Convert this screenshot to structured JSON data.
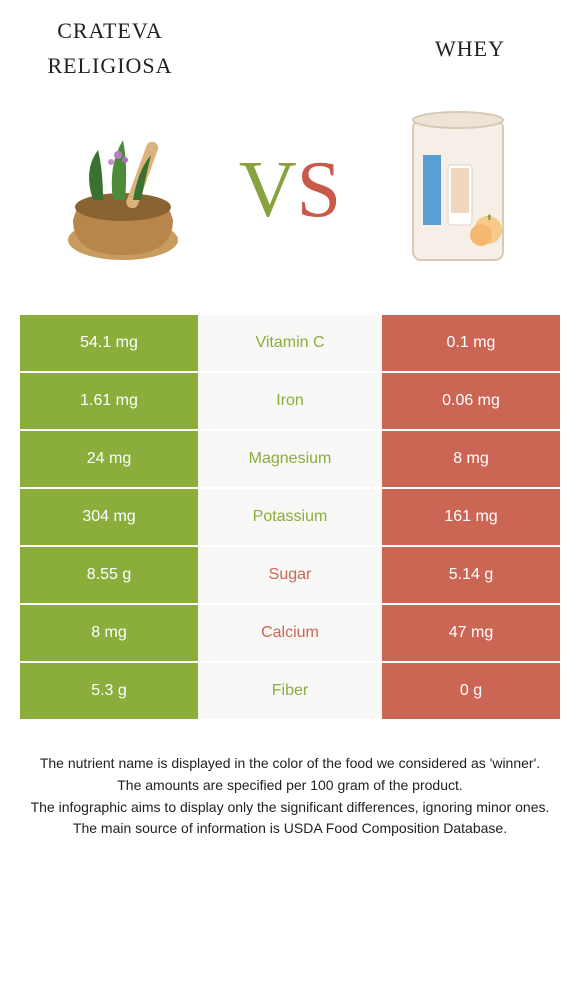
{
  "header": {
    "left_title": "crateva religiosa",
    "right_title": "whey",
    "vs_v": "V",
    "vs_s": "S"
  },
  "colors": {
    "left_bg": "#8aad3c",
    "right_bg": "#cb6654",
    "mid_bg": "#f8f8f6",
    "left_text": "#ffffff",
    "right_text": "#ffffff",
    "nutrient_left_win": "#8aad3c",
    "nutrient_right_win": "#cb6654"
  },
  "rows": [
    {
      "nutrient": "Vitamin C",
      "left": "54.1 mg",
      "right": "0.1 mg",
      "winner": "left"
    },
    {
      "nutrient": "Iron",
      "left": "1.61 mg",
      "right": "0.06 mg",
      "winner": "left"
    },
    {
      "nutrient": "Magnesium",
      "left": "24 mg",
      "right": "8 mg",
      "winner": "left"
    },
    {
      "nutrient": "Potassium",
      "left": "304 mg",
      "right": "161 mg",
      "winner": "left"
    },
    {
      "nutrient": "Sugar",
      "left": "8.55 g",
      "right": "5.14 g",
      "winner": "right"
    },
    {
      "nutrient": "Calcium",
      "left": "8 mg",
      "right": "47 mg",
      "winner": "right"
    },
    {
      "nutrient": "Fiber",
      "left": "5.3 g",
      "right": "0 g",
      "winner": "left"
    }
  ],
  "footer": [
    "The nutrient name is displayed in the color of the food we considered as 'winner'.",
    "The amounts are specified per 100 gram of the product.",
    "The infographic aims to display only the significant differences, ignoring minor ones.",
    "The main source of information is USDA Food Composition Database."
  ]
}
